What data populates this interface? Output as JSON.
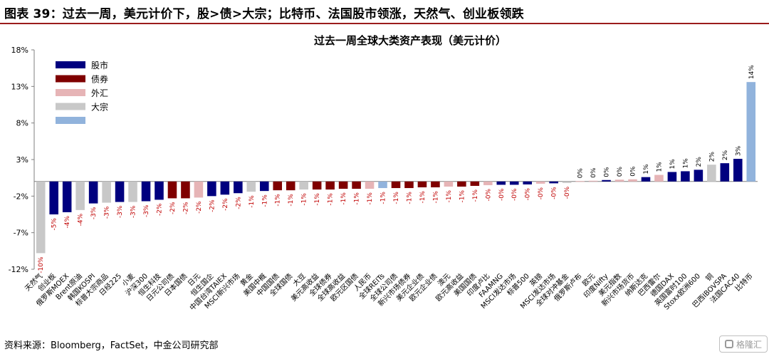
{
  "header": {
    "title": "图表 39：过去一周，美元计价下，股>债>大宗；比特币、法国股市领涨，天然气、创业板领跌"
  },
  "footer": {
    "source": "资料来源：Bloomberg，FactSet，中金公司研究部"
  },
  "watermark": {
    "text": "格隆汇"
  },
  "colors": {
    "股市": "#00007f",
    "债券": "#7f0000",
    "外汇": "#e6b4b6",
    "大宗": "#c8c8c8",
    "比特币": "#91b3dc"
  },
  "chart_data": {
    "type": "bar",
    "title": "过去一周全球大类资产表现（美元计价）",
    "xlabel": "",
    "ylabel": "",
    "ylim": [
      -12,
      18
    ],
    "yticks": [
      -12,
      -7,
      -2,
      3,
      8,
      13,
      18
    ],
    "ytick_labels": [
      "-12%",
      "-7%",
      "-2%",
      "3%",
      "8%",
      "13%",
      "18%"
    ],
    "grid": false,
    "legend_position": "top-left",
    "legend": [
      {
        "label": "股市",
        "key": "股市"
      },
      {
        "label": "债券",
        "key": "债券"
      },
      {
        "label": "外汇",
        "key": "外汇"
      },
      {
        "label": "大宗",
        "key": "大宗"
      },
      {
        "label": "",
        "key": "比特币"
      }
    ],
    "bars": [
      {
        "name": "天然气",
        "value": -9.8,
        "label": "-10%",
        "class": "大宗"
      },
      {
        "name": "创业板",
        "value": -4.5,
        "label": "-5%",
        "class": "股市"
      },
      {
        "name": "俄罗斯MOEX",
        "value": -4.2,
        "label": "-4%",
        "class": "股市"
      },
      {
        "name": "Brent原油",
        "value": -3.9,
        "label": "-4%",
        "class": "大宗"
      },
      {
        "name": "韩国KOSPI",
        "value": -3.0,
        "label": "-3%",
        "class": "股市"
      },
      {
        "name": "标普大宗商品",
        "value": -2.9,
        "label": "-3%",
        "class": "大宗"
      },
      {
        "name": "日经225",
        "value": -2.8,
        "label": "-3%",
        "class": "股市"
      },
      {
        "name": "小麦",
        "value": -2.8,
        "label": "-3%",
        "class": "大宗"
      },
      {
        "name": "沪深300",
        "value": -2.7,
        "label": "-3%",
        "class": "股市"
      },
      {
        "name": "恒生科技",
        "value": -2.5,
        "label": "-2%",
        "class": "股市"
      },
      {
        "name": "日元公司债",
        "value": -2.3,
        "label": "-2%",
        "class": "债券"
      },
      {
        "name": "日本国债",
        "value": -2.3,
        "label": "-2%",
        "class": "债券"
      },
      {
        "name": "日元",
        "value": -2.2,
        "label": "-2%",
        "class": "外汇"
      },
      {
        "name": "恒生国企",
        "value": -2.0,
        "label": "-2%",
        "class": "股市"
      },
      {
        "name": "中国台湾TAIEX",
        "value": -1.8,
        "label": "-2%",
        "class": "股市"
      },
      {
        "name": "MSCI新兴市场",
        "value": -1.6,
        "label": "-2%",
        "class": "股市"
      },
      {
        "name": "黄金",
        "value": -1.4,
        "label": "-1%",
        "class": "大宗"
      },
      {
        "name": "美国中概",
        "value": -1.3,
        "label": "-1%",
        "class": "股市"
      },
      {
        "name": "中国国债",
        "value": -1.2,
        "label": "-1%",
        "class": "债券"
      },
      {
        "name": "全球国债",
        "value": -1.2,
        "label": "-1%",
        "class": "债券"
      },
      {
        "name": "大豆",
        "value": -1.1,
        "label": "-1%",
        "class": "大宗"
      },
      {
        "name": "美元高收益",
        "value": -1.1,
        "label": "-1%",
        "class": "债券"
      },
      {
        "name": "全球债券",
        "value": -1.1,
        "label": "-1%",
        "class": "债券"
      },
      {
        "name": "全球高收益",
        "value": -1.0,
        "label": "-1%",
        "class": "债券"
      },
      {
        "name": "欧元区国债",
        "value": -1.0,
        "label": "-1%",
        "class": "债券"
      },
      {
        "name": "人民币",
        "value": -1.0,
        "label": "-1%",
        "class": "外汇"
      },
      {
        "name": "全球REITs",
        "value": -0.9,
        "label": "-1%",
        "class": "比特币"
      },
      {
        "name": "全球公司债",
        "value": -0.9,
        "label": "-1%",
        "class": "债券"
      },
      {
        "name": "新兴市场债券",
        "value": -0.9,
        "label": "-1%",
        "class": "债券"
      },
      {
        "name": "美元企业债",
        "value": -0.8,
        "label": "-1%",
        "class": "债券"
      },
      {
        "name": "欧元企业债",
        "value": -0.8,
        "label": "-1%",
        "class": "债券"
      },
      {
        "name": "澳元",
        "value": -0.7,
        "label": "-1%",
        "class": "外汇"
      },
      {
        "name": "欧元高收益",
        "value": -0.7,
        "label": "-1%",
        "class": "债券"
      },
      {
        "name": "美国国债",
        "value": -0.6,
        "label": "-1%",
        "class": "债券"
      },
      {
        "name": "印度卢比",
        "value": -0.5,
        "label": "-0%",
        "class": "外汇"
      },
      {
        "name": "FAAMNG",
        "value": -0.45,
        "label": "-0%",
        "class": "股市"
      },
      {
        "name": "MSCI发达市场",
        "value": -0.45,
        "label": "-0%",
        "class": "股市"
      },
      {
        "name": "标普500",
        "value": -0.4,
        "label": "-0%",
        "class": "股市"
      },
      {
        "name": "英镑",
        "value": -0.3,
        "label": "-0%",
        "class": "外汇"
      },
      {
        "name": "MSCI发达市场",
        "value": -0.25,
        "label": "-0%",
        "class": "股市"
      },
      {
        "name": "全球对冲基金",
        "value": -0.2,
        "label": "-0%",
        "class": "大宗"
      },
      {
        "name": "俄罗斯卢布",
        "value": 0.05,
        "label": "0%",
        "class": "外汇"
      },
      {
        "name": "欧元",
        "value": 0.1,
        "label": "0%",
        "class": "外汇"
      },
      {
        "name": "印度Nifty",
        "value": 0.2,
        "label": "0%",
        "class": "股市"
      },
      {
        "name": "美元指数",
        "value": 0.25,
        "label": "0%",
        "class": "外汇"
      },
      {
        "name": "新兴市场货币",
        "value": 0.3,
        "label": "0%",
        "class": "外汇"
      },
      {
        "name": "纳斯达克",
        "value": 0.6,
        "label": "1%",
        "class": "股市"
      },
      {
        "name": "巴西雷尔",
        "value": 0.9,
        "label": "1%",
        "class": "外汇"
      },
      {
        "name": "德国DAX",
        "value": 1.3,
        "label": "1%",
        "class": "股市"
      },
      {
        "name": "英国富时100",
        "value": 1.4,
        "label": "1%",
        "class": "股市"
      },
      {
        "name": "Stoxx欧洲600",
        "value": 1.6,
        "label": "2%",
        "class": "股市"
      },
      {
        "name": "铜",
        "value": 2.3,
        "label": "2%",
        "class": "大宗"
      },
      {
        "name": "巴西IBOVSPA",
        "value": 2.5,
        "label": "2%",
        "class": "股市"
      },
      {
        "name": "法国CAC40",
        "value": 3.1,
        "label": "3%",
        "class": "股市"
      },
      {
        "name": "比特币",
        "value": 13.6,
        "label": "14%",
        "class": "比特币"
      }
    ]
  }
}
